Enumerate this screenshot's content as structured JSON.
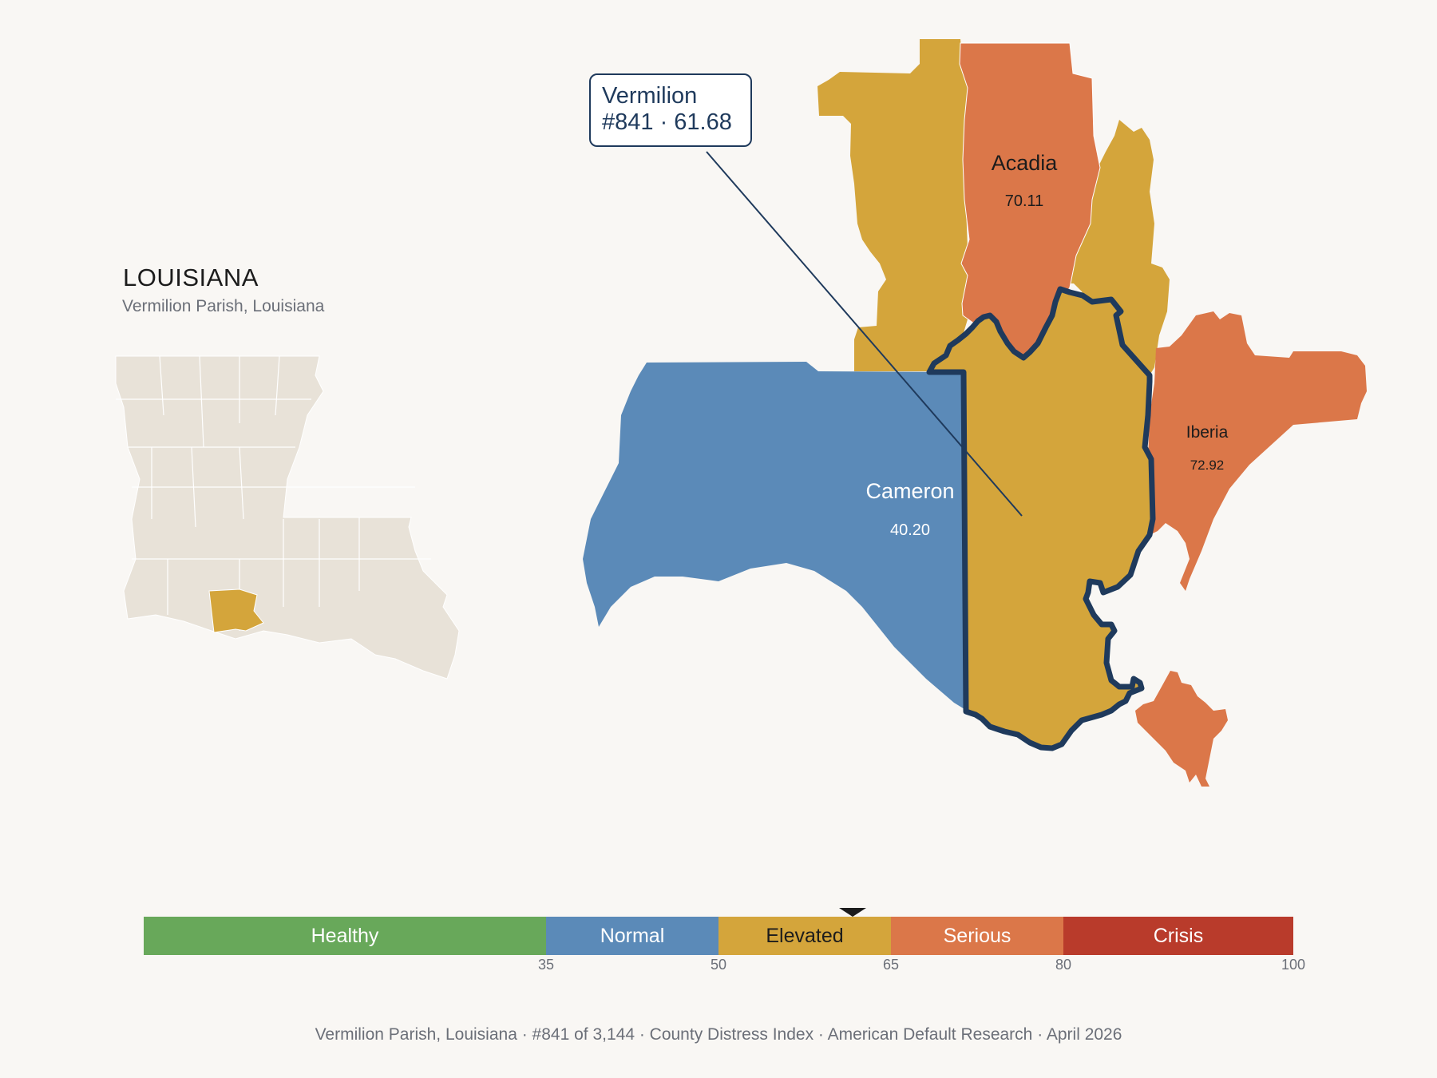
{
  "state": {
    "title": "LOUISIANA",
    "subtitle": "Vermilion Parish, Louisiana"
  },
  "callout": {
    "name": "Vermilion",
    "rank_score": "#841 · 61.68"
  },
  "parishes": [
    {
      "name": "Acadia",
      "value": "70.11",
      "category": "Serious"
    },
    {
      "name": "Iberia",
      "value": "72.92",
      "category": "Serious"
    },
    {
      "name": "Cameron",
      "value": "40.20",
      "category": "Normal"
    },
    {
      "name": "Vermilion",
      "value": "61.68",
      "category": "Elevated",
      "highlighted": true
    }
  ],
  "colors": {
    "healthy": "#68a85a",
    "normal": "#5b8ab8",
    "elevated": "#d4a53b",
    "serious": "#db7749",
    "crisis": "#b93b2b",
    "highlight_outline": "#1f3a5c",
    "inset_fill": "#e8e2d8",
    "background": "#f9f7f4"
  },
  "legend": {
    "segments": [
      {
        "label": "Healthy",
        "from": 0,
        "to": 35,
        "color": "#68a85a",
        "text_color": "#ffffff"
      },
      {
        "label": "Normal",
        "from": 35,
        "to": 50,
        "color": "#5b8ab8",
        "text_color": "#ffffff"
      },
      {
        "label": "Elevated",
        "from": 50,
        "to": 65,
        "color": "#d4a53b",
        "text_color": "#1c1c1c"
      },
      {
        "label": "Serious",
        "from": 65,
        "to": 80,
        "color": "#db7749",
        "text_color": "#ffffff"
      },
      {
        "label": "Crisis",
        "from": 80,
        "to": 100,
        "color": "#b93b2b",
        "text_color": "#ffffff"
      }
    ],
    "ticks": [
      "35",
      "50",
      "65",
      "80",
      "100"
    ],
    "marker_value": 61.68
  },
  "footer": {
    "text": "Vermilion Parish, Louisiana  ·  #841 of 3,144  ·  County Distress Index  ·  American Default Research  ·  April 2026"
  }
}
